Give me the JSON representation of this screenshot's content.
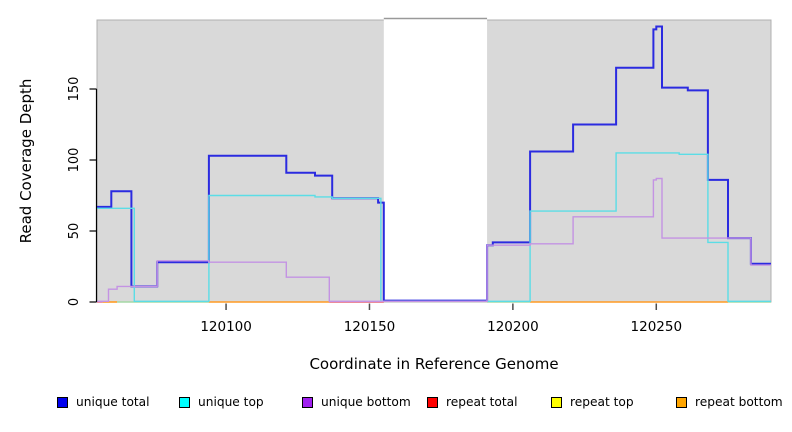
{
  "figure": {
    "background": "#ffffff",
    "panel_bg": "#d9d9d9",
    "panel_edge": "#b0b0b0",
    "tick_color": "#4d4d4d",
    "axis_color": "#000000",
    "mask_top_edge": "#999999"
  },
  "chart_data": {
    "type": "line",
    "subtype": "step-coverage",
    "title": "",
    "xlabel": "Coordinate in Reference Genome",
    "ylabel": "Read Coverage Depth",
    "xlim": [
      120055,
      120290
    ],
    "ylim": [
      0,
      198.6
    ],
    "x_ticks": [
      120100,
      120150,
      120200,
      120250
    ],
    "y_ticks": [
      0,
      50,
      100,
      150
    ],
    "grid": false,
    "legend_position": "bottom",
    "masked_region": {
      "start": 120155,
      "end": 120191,
      "fill": "#ffffff"
    },
    "series": [
      {
        "name": "unique total",
        "legend_color": "#0000ee",
        "line_color": "#2b2be0",
        "line_width": 2,
        "draw": true,
        "steps": [
          [
            120055,
            67
          ],
          [
            120060,
            78
          ],
          [
            120067,
            11
          ],
          [
            120076,
            28
          ],
          [
            120094,
            103
          ],
          [
            120121,
            91
          ],
          [
            120131,
            89
          ],
          [
            120137,
            73
          ],
          [
            120153,
            70
          ],
          [
            120155,
            1
          ],
          [
            120191,
            40
          ],
          [
            120193,
            42
          ],
          [
            120206,
            106
          ],
          [
            120221,
            125
          ],
          [
            120236,
            165
          ],
          [
            120249,
            192
          ],
          [
            120250,
            194
          ],
          [
            120252,
            151
          ],
          [
            120261,
            149
          ],
          [
            120268,
            86
          ],
          [
            120275,
            45
          ],
          [
            120283,
            27
          ],
          [
            120290,
            27
          ]
        ]
      },
      {
        "name": "unique top",
        "legend_color": "#00ffff",
        "line_color": "#5bdde6",
        "line_width": 1.4,
        "draw": true,
        "steps": [
          [
            120055,
            66
          ],
          [
            120068,
            0.5
          ],
          [
            120094,
            75
          ],
          [
            120131,
            74
          ],
          [
            120137,
            73
          ],
          [
            120154,
            0.5
          ],
          [
            120206,
            64
          ],
          [
            120236,
            105
          ],
          [
            120258,
            104
          ],
          [
            120268,
            42
          ],
          [
            120275,
            0.5
          ],
          [
            120290,
            0.5
          ]
        ]
      },
      {
        "name": "unique bottom",
        "legend_color": "#a020f0",
        "line_color": "#c493e3",
        "line_width": 1.4,
        "draw": true,
        "steps": [
          [
            120055,
            0.5
          ],
          [
            120059,
            9
          ],
          [
            120062,
            11
          ],
          [
            120076,
            29
          ],
          [
            120094,
            28
          ],
          [
            120121,
            17.5
          ],
          [
            120136,
            0.5
          ],
          [
            120191,
            40
          ],
          [
            120206,
            41
          ],
          [
            120221,
            60
          ],
          [
            120249,
            86
          ],
          [
            120250,
            87
          ],
          [
            120252,
            45
          ],
          [
            120283,
            26
          ],
          [
            120290,
            26
          ]
        ]
      },
      {
        "name": "repeat total",
        "legend_color": "#ff0000",
        "line_color": "#e66379",
        "line_width": 1.4,
        "draw": false,
        "steps": [
          [
            120055,
            0
          ],
          [
            120290,
            0
          ]
        ]
      },
      {
        "name": "repeat top",
        "legend_color": "#ffff00",
        "line_color": "#f0e040",
        "line_width": 1.4,
        "draw": false,
        "steps": [
          [
            120055,
            0
          ],
          [
            120290,
            0
          ]
        ]
      },
      {
        "name": "repeat bottom",
        "legend_color": "#ffa500",
        "line_color": "#ff9b24",
        "line_width": 1.6,
        "draw": false,
        "steps": [
          [
            120055,
            0
          ],
          [
            120290,
            0
          ]
        ]
      }
    ],
    "baseline_segments": [
      {
        "from": 120055,
        "to": 120057,
        "color": "#e66379",
        "width": 1.4
      },
      {
        "from": 120057,
        "to": 120062,
        "color": "#ff9b24",
        "width": 1.6
      },
      {
        "from": 120062,
        "to": 120094,
        "color": "#a5d8a5",
        "width": 1.4
      },
      {
        "from": 120094,
        "to": 120136,
        "color": "#ff9b24",
        "width": 1.6
      },
      {
        "from": 120136,
        "to": 120155,
        "color": "#e66379",
        "width": 1.4
      },
      {
        "from": 120191,
        "to": 120206,
        "color": "#a5d8a5",
        "width": 1.4
      },
      {
        "from": 120206,
        "to": 120275,
        "color": "#ff9b24",
        "width": 1.6
      },
      {
        "from": 120275,
        "to": 120290,
        "color": "#a5d8a5",
        "width": 1.4
      }
    ]
  }
}
